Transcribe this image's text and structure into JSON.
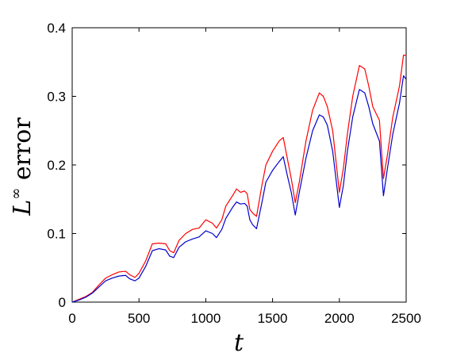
{
  "chart_data": {
    "type": "line",
    "title": "",
    "xlabel": "t",
    "ylabel_main": "L",
    "ylabel_sup": "∞",
    "ylabel_rest": " error",
    "xlim": [
      0,
      2500
    ],
    "ylim": [
      0,
      0.4
    ],
    "xticks": [
      0,
      500,
      1000,
      1500,
      2000,
      2500
    ],
    "xtick_labels": [
      "0",
      "500",
      "1000",
      "1500",
      "2000",
      "2500"
    ],
    "yticks": [
      0,
      0.1,
      0.2,
      0.3,
      0.4
    ],
    "ytick_labels": [
      "0",
      "0.1",
      "0.2",
      "0.3",
      "0.4"
    ],
    "grid": false,
    "legend": "none",
    "series": [
      {
        "color": "#ff0000",
        "x": [
          0,
          50,
          100,
          150,
          200,
          250,
          300,
          350,
          400,
          430,
          470,
          500,
          550,
          600,
          650,
          700,
          730,
          760,
          800,
          850,
          900,
          950,
          1000,
          1050,
          1080,
          1120,
          1150,
          1200,
          1230,
          1260,
          1290,
          1310,
          1330,
          1350,
          1380,
          1420,
          1450,
          1500,
          1550,
          1580,
          1610,
          1640,
          1670,
          1700,
          1750,
          1800,
          1850,
          1880,
          1910,
          1950,
          2000,
          2030,
          2060,
          2100,
          2150,
          2190,
          2220,
          2250,
          2300,
          2330,
          2360,
          2400,
          2450,
          2480,
          2500
        ],
        "values": [
          0.0,
          0.004,
          0.008,
          0.014,
          0.025,
          0.035,
          0.04,
          0.044,
          0.045,
          0.04,
          0.036,
          0.042,
          0.06,
          0.085,
          0.086,
          0.085,
          0.075,
          0.072,
          0.09,
          0.1,
          0.106,
          0.108,
          0.12,
          0.115,
          0.108,
          0.12,
          0.14,
          0.155,
          0.165,
          0.16,
          0.162,
          0.158,
          0.135,
          0.13,
          0.125,
          0.17,
          0.2,
          0.22,
          0.235,
          0.24,
          0.21,
          0.18,
          0.145,
          0.175,
          0.235,
          0.28,
          0.305,
          0.3,
          0.285,
          0.25,
          0.16,
          0.195,
          0.245,
          0.3,
          0.345,
          0.34,
          0.315,
          0.285,
          0.265,
          0.18,
          0.215,
          0.27,
          0.315,
          0.36,
          0.36
        ]
      },
      {
        "color": "#0000cc",
        "x": [
          0,
          50,
          100,
          150,
          200,
          250,
          300,
          350,
          400,
          430,
          470,
          500,
          550,
          600,
          650,
          700,
          730,
          760,
          800,
          850,
          900,
          950,
          1000,
          1050,
          1080,
          1120,
          1150,
          1200,
          1230,
          1260,
          1290,
          1310,
          1330,
          1350,
          1380,
          1420,
          1450,
          1500,
          1550,
          1580,
          1610,
          1640,
          1670,
          1700,
          1750,
          1800,
          1850,
          1880,
          1910,
          1950,
          2000,
          2030,
          2060,
          2100,
          2150,
          2190,
          2220,
          2250,
          2300,
          2330,
          2360,
          2400,
          2450,
          2480,
          2500
        ],
        "values": [
          0.0,
          0.003,
          0.007,
          0.013,
          0.022,
          0.031,
          0.035,
          0.038,
          0.039,
          0.034,
          0.031,
          0.035,
          0.052,
          0.075,
          0.078,
          0.076,
          0.067,
          0.065,
          0.08,
          0.088,
          0.092,
          0.095,
          0.104,
          0.1,
          0.094,
          0.106,
          0.122,
          0.138,
          0.146,
          0.143,
          0.144,
          0.14,
          0.12,
          0.113,
          0.107,
          0.145,
          0.175,
          0.192,
          0.205,
          0.212,
          0.185,
          0.16,
          0.127,
          0.16,
          0.21,
          0.25,
          0.273,
          0.27,
          0.258,
          0.22,
          0.138,
          0.17,
          0.22,
          0.27,
          0.31,
          0.305,
          0.285,
          0.26,
          0.235,
          0.155,
          0.195,
          0.245,
          0.29,
          0.33,
          0.325
        ]
      }
    ]
  }
}
